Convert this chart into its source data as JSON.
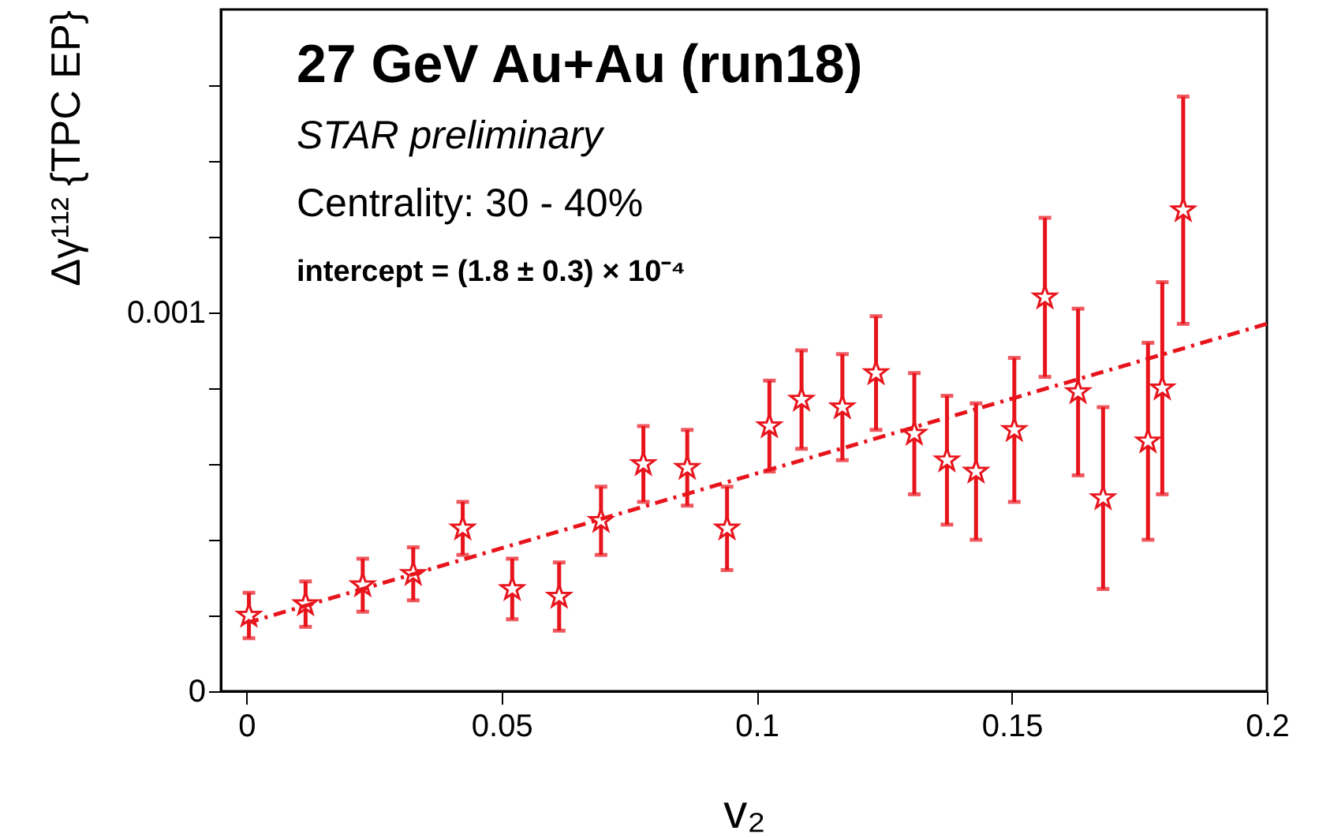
{
  "chart_data": {
    "type": "scatter",
    "title": "27 GeV Au+Au (run18)",
    "xlabel": "v₂",
    "ylabel": "Δγ¹¹² {TPC EP}",
    "annotations": [
      "STAR preliminary",
      "Centrality: 30 - 40%",
      "intercept = (1.8 ± 0.3) × 10⁻⁴"
    ],
    "xlim": [
      -0.005,
      0.2
    ],
    "ylim": [
      0,
      0.0018
    ],
    "xticks": [
      0,
      0.05,
      0.1,
      0.15,
      0.2
    ],
    "yticks": [
      0,
      {
        "value": 0.0002,
        "label": null
      },
      {
        "value": 0.0004,
        "label": null
      },
      {
        "value": 0.0006,
        "label": null
      },
      {
        "value": 0.0008,
        "label": null
      },
      0.001,
      {
        "value": 0.0012,
        "label": null
      },
      {
        "value": 0.0014,
        "label": null
      },
      {
        "value": 0.0016,
        "label": null
      }
    ],
    "grid": false,
    "series": [
      {
        "color": "#e8141c",
        "marker": "star",
        "x": [
          0.0005,
          0.0116,
          0.0228,
          0.0327,
          0.0424,
          0.0521,
          0.0613,
          0.0695,
          0.0778,
          0.0864,
          0.0942,
          0.1025,
          0.1088,
          0.1168,
          0.1234,
          0.1309,
          0.1373,
          0.143,
          0.1505,
          0.1565,
          0.163,
          0.1679,
          0.1767,
          0.1795,
          0.1836
        ],
        "values": [
          0.0002,
          0.00023,
          0.00028,
          0.00031,
          0.00043,
          0.00027,
          0.00025,
          0.00045,
          0.0006,
          0.00059,
          0.00043,
          0.0007,
          0.00077,
          0.00075,
          0.00084,
          0.00068,
          0.00061,
          0.00058,
          0.00069,
          0.00104,
          0.00079,
          0.00051,
          0.00066,
          0.0008,
          0.00127
        ],
        "errors": [
          6e-05,
          6e-05,
          7e-05,
          7e-05,
          7e-05,
          8e-05,
          9e-05,
          9e-05,
          0.0001,
          0.0001,
          0.00011,
          0.00012,
          0.00013,
          0.00014,
          0.00015,
          0.00016,
          0.00017,
          0.00018,
          0.00019,
          0.00021,
          0.00022,
          0.00024,
          0.00026,
          0.00028,
          0.0003
        ]
      },
      {
        "type": "line",
        "color": "#e8141c",
        "marker": "none",
        "line_style": "dashed",
        "x": [
          0,
          0.2
        ],
        "values": [
          0.00018,
          0.00097
        ]
      }
    ]
  }
}
